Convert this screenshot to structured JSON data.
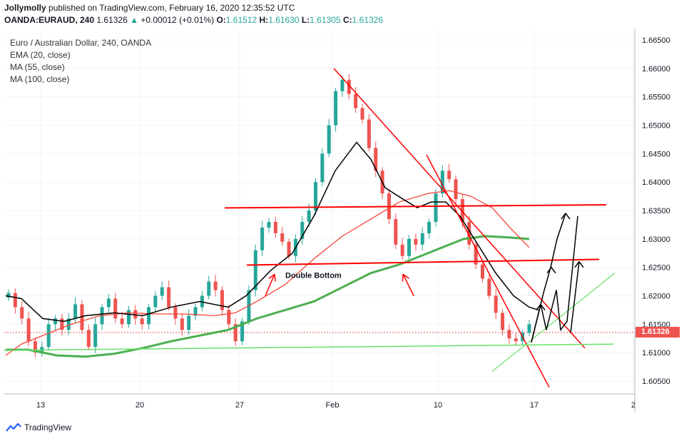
{
  "header": {
    "publisher": "Jollymolly",
    "published_text": "published on TradingView.com, February 16, 2020 12:35:52 UTC",
    "symbol": "OANDA:EURAUD, 240",
    "last": "1.61326",
    "change": "+0.00012 (+0.01%)",
    "o_label": "O:",
    "o": "1.61512",
    "h_label": "H:",
    "h": "1.61630",
    "l_label": "L:",
    "l": "1.61305",
    "c_label": "C:",
    "c": "1.61326"
  },
  "legend": {
    "title": "Euro / Australian Dollar, 240, OANDA",
    "ind1": "EMA (20, close)",
    "ind2": "MA (55, close)",
    "ind3": "MA (100, close)"
  },
  "price_tag": "1.61326",
  "annotation": "Double Bottom",
  "footer": {
    "brand": "TradingView"
  },
  "colors": {
    "up": "#26a69a",
    "down": "#ef5350",
    "ema20": "#000000",
    "ma55": "#f44336",
    "ma100": "#4caf50",
    "trend_red": "#ff0000",
    "trend_green": "#66e066",
    "arrow_black": "#000000"
  },
  "chart_data": {
    "type": "candlestick",
    "ylim": [
      1.6025,
      1.667
    ],
    "y_ticks": [
      "1.66500",
      "1.66000",
      "1.65500",
      "1.65000",
      "1.64500",
      "1.64000",
      "1.63500",
      "1.63000",
      "1.62500",
      "1.62000",
      "1.61500",
      "1.61000",
      "1.60500"
    ],
    "x_ticks": [
      "13",
      "20",
      "27",
      "Feb",
      "10",
      "17",
      "2"
    ],
    "candles_close": [
      1.6205,
      1.618,
      1.616,
      1.612,
      1.61,
      1.611,
      1.615,
      1.616,
      1.614,
      1.616,
      1.6185,
      1.614,
      1.611,
      1.615,
      1.618,
      1.6195,
      1.616,
      1.615,
      1.6175,
      1.616,
      1.615,
      1.618,
      1.62,
      1.6215,
      1.618,
      1.616,
      1.614,
      1.6165,
      1.618,
      1.62,
      1.6225,
      1.621,
      1.6175,
      1.615,
      1.612,
      1.6155,
      1.621,
      1.628,
      1.632,
      1.633,
      1.631,
      1.6295,
      1.627,
      1.63,
      1.633,
      1.635,
      1.64,
      1.645,
      1.65,
      1.656,
      1.658,
      1.6555,
      1.653,
      1.651,
      1.646,
      1.642,
      1.638,
      1.6335,
      1.629,
      1.627,
      1.63,
      1.629,
      1.631,
      1.633,
      1.638,
      1.642,
      1.6405,
      1.637,
      1.633,
      1.629,
      1.6255,
      1.623,
      1.62,
      1.617,
      1.614,
      1.6125,
      1.612,
      1.6135,
      1.615
    ],
    "ema20_desc": "EMA (20, close)",
    "ma55_desc": "MA (55, close)",
    "ma100_desc": "MA (100, close)"
  }
}
